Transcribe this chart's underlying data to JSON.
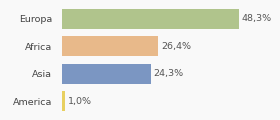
{
  "categories": [
    "Europa",
    "Africa",
    "Asia",
    "America"
  ],
  "values": [
    48.3,
    26.4,
    24.3,
    1.0
  ],
  "labels": [
    "48,3%",
    "26,4%",
    "24,3%",
    "1,0%"
  ],
  "bar_colors": [
    "#b0c48c",
    "#e8b98a",
    "#7b96c2",
    "#e8d060"
  ],
  "background_color": "#f9f9f9",
  "xlim": [
    0,
    58
  ],
  "bar_height": 0.72,
  "label_fontsize": 6.8,
  "tick_fontsize": 6.8
}
